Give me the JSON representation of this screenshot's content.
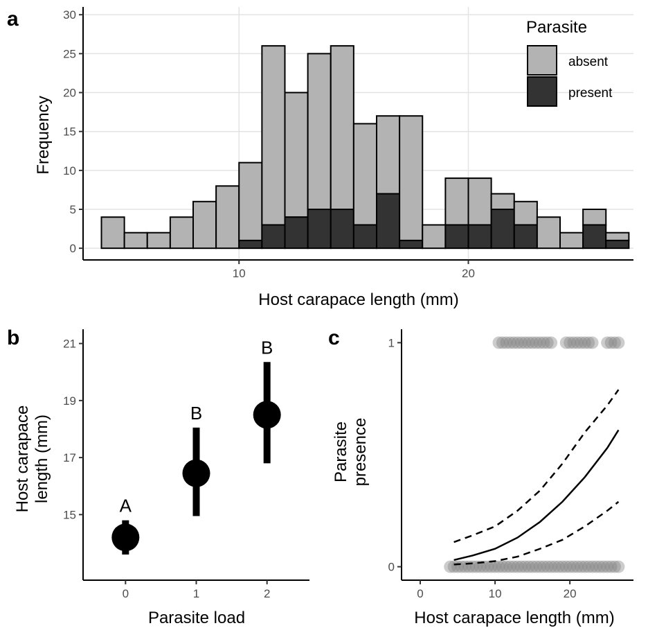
{
  "chart_data": [
    {
      "panel": "a",
      "type": "bar",
      "stacked": true,
      "xlabel": "Host carapace length (mm)",
      "ylabel": "Frequency",
      "xticks": [
        10,
        20
      ],
      "yticks": [
        0,
        5,
        10,
        15,
        20,
        25,
        30
      ],
      "xlim": [
        3.2,
        27.2
      ],
      "ylim": [
        -1.5,
        31
      ],
      "grid": true,
      "legend": {
        "title": "Parasite",
        "position": "top-right",
        "entries": [
          "absent",
          "present"
        ]
      },
      "bin_centers": [
        4.5,
        5.5,
        6.5,
        7.5,
        8.5,
        9.5,
        10.5,
        11.5,
        12.5,
        13.5,
        14.5,
        15.5,
        16.5,
        17.5,
        18.5,
        19.5,
        20.5,
        21.5,
        22.5,
        23.5,
        24.5,
        25.5,
        26.5
      ],
      "series": [
        {
          "name": "absent",
          "color": "#b3b3b3",
          "values": [
            4,
            2,
            2,
            4,
            6,
            8,
            10,
            23,
            16,
            20,
            21,
            13,
            10,
            16,
            3,
            6,
            6,
            2,
            3,
            4,
            2,
            2,
            1
          ]
        },
        {
          "name": "present",
          "color": "#333333",
          "values": [
            0,
            0,
            0,
            0,
            0,
            0,
            1,
            3,
            4,
            5,
            5,
            3,
            7,
            1,
            0,
            3,
            3,
            5,
            3,
            0,
            0,
            3,
            1
          ]
        }
      ],
      "totals": [
        4,
        2,
        2,
        4,
        6,
        8,
        11,
        26,
        20,
        25,
        26,
        16,
        17,
        17,
        3,
        9,
        9,
        7,
        6,
        4,
        2,
        5,
        2
      ]
    },
    {
      "panel": "b",
      "type": "scatter",
      "xlabel": "Parasite load",
      "ylabel": [
        "Host carapace",
        "length (mm)"
      ],
      "categories": [
        "0",
        "1",
        "2"
      ],
      "xticks": [
        "0",
        "1",
        "2"
      ],
      "yticks": [
        15,
        17,
        19,
        21
      ],
      "ylim": [
        12.7,
        21.5
      ],
      "mean": [
        14.2,
        16.45,
        18.5
      ],
      "ci_low": [
        13.6,
        14.95,
        16.8
      ],
      "ci_high": [
        14.8,
        18.05,
        20.35
      ],
      "group_labels": [
        "A",
        "B",
        "B"
      ],
      "grid": false
    },
    {
      "panel": "c",
      "type": "line",
      "xlabel": "Host carapace length (mm)",
      "ylabel": [
        "Parasite",
        "presence"
      ],
      "xticks": [
        0,
        10,
        20
      ],
      "yticks": [
        0,
        1
      ],
      "xlim": [
        -2.5,
        28.5
      ],
      "ylim": [
        -0.06,
        1.06
      ],
      "grid": false,
      "fit": {
        "x": [
          4.5,
          7,
          10,
          13,
          16,
          19,
          22,
          25,
          26.5
        ],
        "y": [
          0.03,
          0.05,
          0.08,
          0.13,
          0.2,
          0.29,
          0.4,
          0.53,
          0.61
        ],
        "lower": [
          0.01,
          0.015,
          0.025,
          0.045,
          0.08,
          0.12,
          0.18,
          0.25,
          0.29
        ],
        "upper": [
          0.11,
          0.14,
          0.18,
          0.25,
          0.34,
          0.46,
          0.6,
          0.72,
          0.79
        ]
      },
      "points_present_x": [
        10.5,
        11,
        11.5,
        12,
        12.5,
        13,
        13.5,
        14,
        14.5,
        15,
        15.5,
        16,
        16.5,
        17,
        17.5,
        19.5,
        20,
        20.5,
        21,
        21.5,
        22,
        22.5,
        23,
        25,
        25.5,
        26,
        26.5
      ],
      "points_absent_x": [
        4,
        4.5,
        5,
        5.5,
        6,
        6.5,
        7,
        7.5,
        8,
        8.5,
        9,
        9.5,
        10,
        10.5,
        11,
        11.5,
        12,
        12.5,
        13,
        13.5,
        14,
        14.5,
        15,
        15.5,
        16,
        16.5,
        17,
        17.5,
        18,
        18.5,
        19,
        19.5,
        20,
        20.5,
        21,
        21.5,
        22,
        22.5,
        23,
        23.5,
        24,
        24.5,
        25,
        25.5,
        26,
        26.5
      ]
    }
  ],
  "panel_labels": [
    "a",
    "b",
    "c"
  ]
}
